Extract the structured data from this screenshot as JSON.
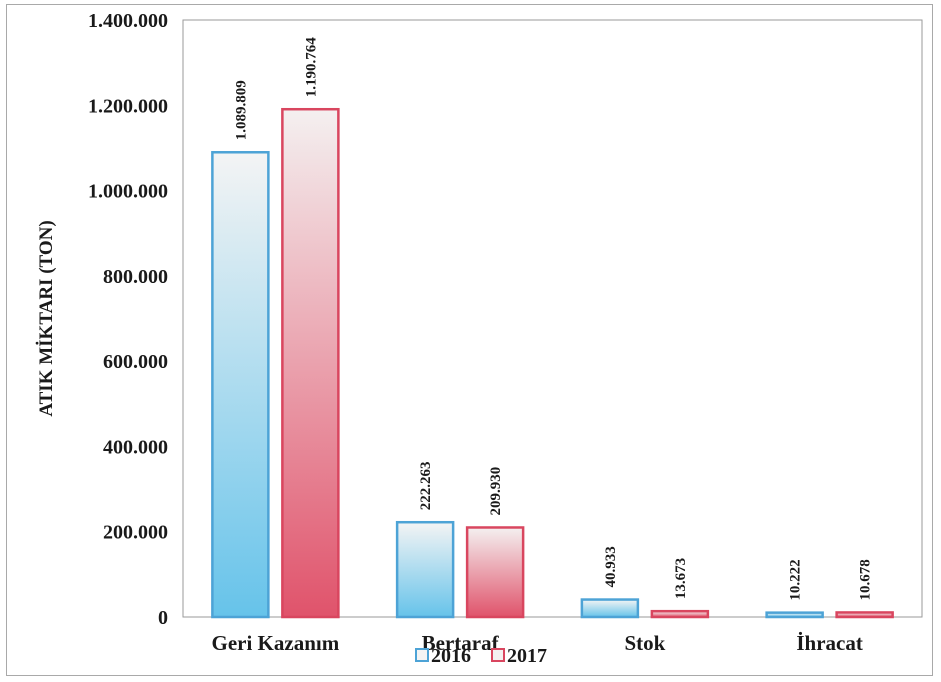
{
  "chart_data": {
    "type": "bar",
    "title": "",
    "xlabel": "",
    "ylabel": "ATIK MİKTARI (TON)",
    "categories": [
      "Geri Kazanım",
      "Bertaraf",
      "Stok",
      "İhracat"
    ],
    "series": [
      {
        "name": "2016",
        "values": [
          1089809,
          222263,
          40933,
          10222
        ],
        "value_labels": [
          "1.089.809",
          "222.263",
          "40.933",
          "10.222"
        ],
        "color": "#4da3d6",
        "gradient_top": "#f4f4f4",
        "gradient_bottom": "#66c3ea"
      },
      {
        "name": "2017",
        "values": [
          1190764,
          209930,
          13673,
          10678
        ],
        "value_labels": [
          "1.190.764",
          "209.930",
          "13.673",
          "10.678"
        ],
        "color": "#d9465f",
        "gradient_top": "#f4f0f0",
        "gradient_bottom": "#e0536b"
      }
    ],
    "ylim": [
      0,
      1400000
    ],
    "yticks": [
      0,
      200000,
      400000,
      600000,
      800000,
      1000000,
      1200000,
      1400000
    ],
    "ytick_labels": [
      "0",
      "200.000",
      "400.000",
      "600.000",
      "800.000",
      "1.000.000",
      "1.200.000",
      "1.400.000"
    ],
    "grid": false,
    "legend_position": "bottom-center"
  }
}
